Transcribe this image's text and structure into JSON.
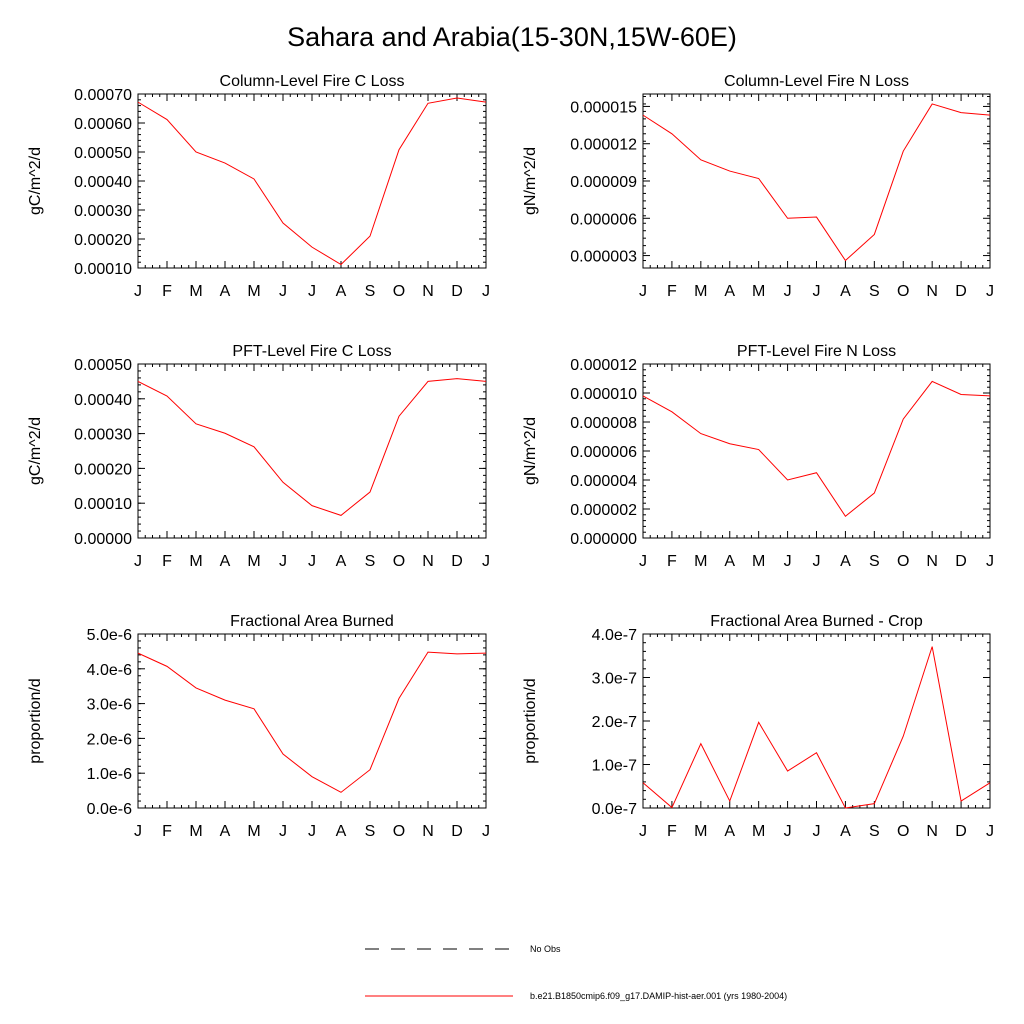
{
  "page_title": "Sahara and Arabia(15-30N,15W-60E)",
  "months": [
    "J",
    "F",
    "M",
    "A",
    "M",
    "J",
    "J",
    "A",
    "S",
    "O",
    "N",
    "D",
    "J"
  ],
  "chart_data": [
    {
      "type": "line",
      "title": "Column-Level Fire C Loss",
      "ylabel": "gC/m^2/d",
      "ylim": [
        0.0001,
        0.0007
      ],
      "yticks": [
        "0.00010",
        "0.00020",
        "0.00030",
        "0.00040",
        "0.00050",
        "0.00060",
        "0.00070"
      ],
      "ytick_values": [
        0.0001,
        0.0002,
        0.0003,
        0.0004,
        0.0005,
        0.0006,
        0.0007
      ],
      "series": [
        {
          "name": "b.e21.B1850cmip6.f09_g17.DAMIP-hist-aer.001 (yrs 1980-2004)",
          "color": "#ff0000",
          "values": [
            0.000672,
            0.000612,
            0.0005,
            0.000462,
            0.000407,
            0.000255,
            0.000172,
            0.000112,
            0.00021,
            0.000508,
            0.000668,
            0.000686,
            0.000672
          ]
        }
      ]
    },
    {
      "type": "line",
      "title": "Column-Level Fire N Loss",
      "ylabel": "gN/m^2/d",
      "ylim": [
        2e-06,
        1.6e-05
      ],
      "yticks": [
        "0.000003",
        "0.000006",
        "0.000009",
        "0.000012",
        "0.000015"
      ],
      "ytick_values": [
        3e-06,
        6e-06,
        9e-06,
        1.2e-05,
        1.5e-05
      ],
      "series": [
        {
          "name": "b.e21.B1850cmip6.f09_g17.DAMIP-hist-aer.001 (yrs 1980-2004)",
          "color": "#ff0000",
          "values": [
            1.43e-05,
            1.28e-05,
            1.07e-05,
            9.8e-06,
            9.2e-06,
            6e-06,
            6.1e-06,
            2.6e-06,
            4.7e-06,
            1.14e-05,
            1.52e-05,
            1.45e-05,
            1.43e-05
          ]
        }
      ]
    },
    {
      "type": "line",
      "title": "PFT-Level Fire C Loss",
      "ylabel": "gC/m^2/d",
      "ylim": [
        0,
        0.0005
      ],
      "yticks": [
        "0.00000",
        "0.00010",
        "0.00020",
        "0.00030",
        "0.00040",
        "0.00050"
      ],
      "ytick_values": [
        0,
        0.0001,
        0.0002,
        0.0003,
        0.0004,
        0.0005
      ],
      "series": [
        {
          "name": "b.e21.B1850cmip6.f09_g17.DAMIP-hist-aer.001 (yrs 1980-2004)",
          "color": "#ff0000",
          "values": [
            0.00045,
            0.000408,
            0.000328,
            0.000301,
            0.000262,
            0.00016,
            9.3e-05,
            6.5e-05,
            0.000132,
            0.00035,
            0.00045,
            0.000458,
            0.00045
          ]
        }
      ]
    },
    {
      "type": "line",
      "title": "PFT-Level Fire N Loss",
      "ylabel": "gN/m^2/d",
      "ylim": [
        0,
        1.2e-05
      ],
      "yticks": [
        "0.000000",
        "0.000002",
        "0.000004",
        "0.000006",
        "0.000008",
        "0.000010",
        "0.000012"
      ],
      "ytick_values": [
        0,
        2e-06,
        4e-06,
        6e-06,
        8e-06,
        1e-05,
        1.2e-05
      ],
      "series": [
        {
          "name": "b.e21.B1850cmip6.f09_g17.DAMIP-hist-aer.001 (yrs 1980-2004)",
          "color": "#ff0000",
          "values": [
            9.8e-06,
            8.7e-06,
            7.2e-06,
            6.5e-06,
            6.1e-06,
            4e-06,
            4.5e-06,
            1.5e-06,
            3.1e-06,
            8.2e-06,
            1.08e-05,
            9.9e-06,
            9.8e-06
          ]
        }
      ]
    },
    {
      "type": "line",
      "title": "Fractional Area Burned",
      "ylabel": "proportion/d",
      "ylim": [
        0,
        5e-06
      ],
      "yticks": [
        "0.0e-6",
        "1.0e-6",
        "2.0e-6",
        "3.0e-6",
        "4.0e-6",
        "5.0e-6"
      ],
      "ytick_values": [
        0,
        1e-06,
        2e-06,
        3e-06,
        4e-06,
        5e-06
      ],
      "series": [
        {
          "name": "b.e21.B1850cmip6.f09_g17.DAMIP-hist-aer.001 (yrs 1980-2004)",
          "color": "#ff0000",
          "values": [
            4.45e-06,
            4.07e-06,
            3.45e-06,
            3.1e-06,
            2.85e-06,
            1.55e-06,
            9e-07,
            4.5e-07,
            1.1e-06,
            3.15e-06,
            4.48e-06,
            4.43e-06,
            4.45e-06
          ]
        }
      ]
    },
    {
      "type": "line",
      "title": "Fractional Area Burned - Crop",
      "ylabel": "proportion/d",
      "ylim": [
        0,
        4e-07
      ],
      "yticks": [
        "0.0e-7",
        "1.0e-7",
        "2.0e-7",
        "3.0e-7",
        "4.0e-7"
      ],
      "ytick_values": [
        0,
        1e-07,
        2e-07,
        3e-07,
        4e-07
      ],
      "series": [
        {
          "name": "b.e21.B1850cmip6.f09_g17.DAMIP-hist-aer.001 (yrs 1980-2004)",
          "color": "#ff0000",
          "values": [
            5.8e-08,
            1e-09,
            1.48e-07,
            1.6e-08,
            1.97e-07,
            8.5e-08,
            1.27e-07,
            0.0,
            1e-08,
            1.65e-07,
            3.71e-07,
            1.6e-08,
            5.8e-08
          ]
        }
      ]
    }
  ],
  "legend": {
    "items": [
      {
        "label": "No Obs",
        "style": "dashed",
        "color": "#000000"
      },
      {
        "label": "b.e21.B1850cmip6.f09_g17.DAMIP-hist-aer.001 (yrs 1980-2004)",
        "style": "solid",
        "color": "#ff0000"
      }
    ]
  }
}
